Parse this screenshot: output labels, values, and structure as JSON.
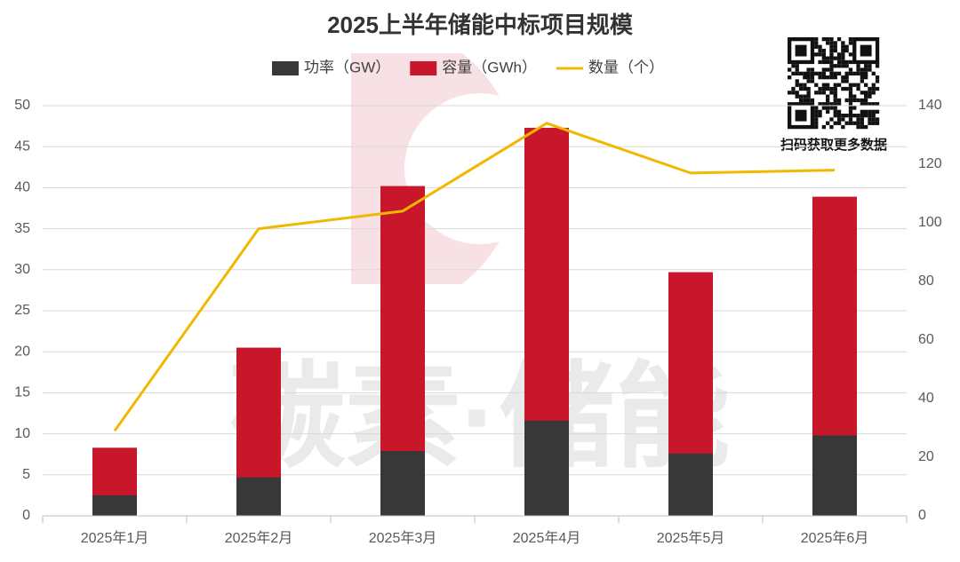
{
  "chart_data": {
    "type": "bar",
    "title": "2025上半年储能中标项目规模",
    "watermark": "碳素·储能",
    "qr_caption": "扫码获取更多数据",
    "categories": [
      "2025年1月",
      "2025年2月",
      "2025年3月",
      "2025年4月",
      "2025年5月",
      "2025年6月"
    ],
    "series": [
      {
        "name": "功率（GW）",
        "color": "#383838",
        "type": "bar",
        "values": [
          2.5,
          4.7,
          7.9,
          11.6,
          7.6,
          9.8
        ]
      },
      {
        "name": "容量（GWh）",
        "color": "#c8172b",
        "type": "bar",
        "values": [
          8.3,
          20.5,
          40.2,
          47.3,
          29.7,
          38.9
        ]
      },
      {
        "name": "数量（个）",
        "color": "#f0b800",
        "type": "line",
        "axis": "y2",
        "values": [
          29,
          98,
          104,
          134,
          117,
          118
        ]
      }
    ],
    "ylim": [
      0,
      50
    ],
    "yticks": [
      0,
      5,
      10,
      15,
      20,
      25,
      30,
      35,
      40,
      45,
      50
    ],
    "y2lim": [
      0,
      140
    ],
    "y2ticks": [
      0,
      20,
      40,
      60,
      80,
      100,
      120,
      140
    ],
    "grid": true
  }
}
